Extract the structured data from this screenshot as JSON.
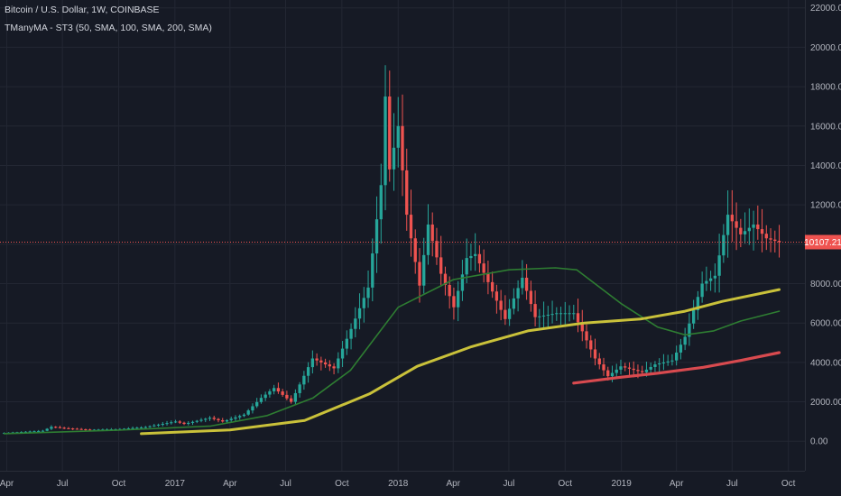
{
  "header": {
    "symbol_line": "Bitcoin / U.S. Dollar, 1W, COINBASE",
    "indicator_line": "TManyMA - ST3 (50, SMA, 100, SMA, 200, SMA)"
  },
  "chart_data": {
    "type": "candlestick",
    "ylim": [
      -1500,
      22400
    ],
    "xlim": [
      "2016-03-21",
      "2019-10-28"
    ],
    "grid": true,
    "y_ticks": [
      0,
      2000,
      4000,
      6000,
      8000,
      10000,
      12000,
      14000,
      16000,
      18000,
      20000,
      22000
    ],
    "y_tick_labels": [
      "0.00",
      "2000.00",
      "4000.00",
      "6000.00",
      "8000.00",
      "10000.00",
      "12000.00",
      "14000.00",
      "16000.00",
      "18000.00",
      "20000.00",
      "22000.00"
    ],
    "x_ticks": [
      {
        "label": "Apr",
        "date": "2016-04-01"
      },
      {
        "label": "Jul",
        "date": "2016-07-01"
      },
      {
        "label": "Oct",
        "date": "2016-10-01"
      },
      {
        "label": "2017",
        "date": "2017-01-01"
      },
      {
        "label": "Apr",
        "date": "2017-04-01"
      },
      {
        "label": "Jul",
        "date": "2017-07-01"
      },
      {
        "label": "Oct",
        "date": "2017-10-01"
      },
      {
        "label": "2018",
        "date": "2018-01-01"
      },
      {
        "label": "Apr",
        "date": "2018-04-01"
      },
      {
        "label": "Jul",
        "date": "2018-07-01"
      },
      {
        "label": "Oct",
        "date": "2018-10-01"
      },
      {
        "label": "2019",
        "date": "2019-01-01"
      },
      {
        "label": "Apr",
        "date": "2019-04-01"
      },
      {
        "label": "Jul",
        "date": "2019-07-01"
      },
      {
        "label": "Oct",
        "date": "2019-10-01"
      }
    ],
    "current_price": {
      "value": 10107.21,
      "label": "10107.21",
      "color": "#ef5350"
    },
    "colors": {
      "up": "#26a69a",
      "down": "#ef5350",
      "ma50": "#2e7d32",
      "ma100": "#c9c13a",
      "ma200": "#d84a4f"
    },
    "candle_anchors": {
      "description_note": "",
      "points": [
        [
          "2016-03-28",
          420
        ],
        [
          "2016-05-30",
          530
        ],
        [
          "2016-06-13",
          730
        ],
        [
          "2016-07-04",
          660
        ],
        [
          "2016-08-15",
          580
        ],
        [
          "2016-10-03",
          615
        ],
        [
          "2016-11-14",
          720
        ],
        [
          "2016-12-26",
          960
        ],
        [
          "2017-01-02",
          1000
        ],
        [
          "2017-01-16",
          880
        ],
        [
          "2017-02-27",
          1190
        ],
        [
          "2017-03-20",
          1000
        ],
        [
          "2017-04-24",
          1350
        ],
        [
          "2017-05-22",
          2200
        ],
        [
          "2017-06-12",
          2700
        ],
        [
          "2017-07-10",
          2000
        ],
        [
          "2017-08-14",
          4200
        ],
        [
          "2017-09-18",
          3700
        ],
        [
          "2017-10-16",
          5700
        ],
        [
          "2017-11-13",
          7800
        ],
        [
          "2017-12-04",
          13000
        ],
        [
          "2017-12-11",
          17500
        ],
        [
          "2017-12-18",
          13800
        ],
        [
          "2018-01-01",
          16000
        ],
        [
          "2018-01-15",
          11500
        ],
        [
          "2018-02-05",
          7900
        ],
        [
          "2018-02-19",
          11000
        ],
        [
          "2018-03-12",
          8500
        ],
        [
          "2018-04-02",
          6800
        ],
        [
          "2018-04-23",
          9300
        ],
        [
          "2018-05-07",
          9500
        ],
        [
          "2018-06-04",
          7600
        ],
        [
          "2018-06-25",
          6200
        ],
        [
          "2018-07-23",
          8300
        ],
        [
          "2018-08-13",
          6300
        ],
        [
          "2018-09-17",
          6500
        ],
        [
          "2018-10-15",
          6500
        ],
        [
          "2018-11-19",
          4200
        ],
        [
          "2018-12-10",
          3300
        ],
        [
          "2018-12-31",
          3800
        ],
        [
          "2019-02-04",
          3500
        ],
        [
          "2019-02-25",
          3900
        ],
        [
          "2019-03-25",
          4100
        ],
        [
          "2019-04-15",
          5300
        ],
        [
          "2019-05-13",
          8000
        ],
        [
          "2019-06-03",
          8400
        ],
        [
          "2019-06-24",
          11500
        ],
        [
          "2019-07-15",
          10500
        ],
        [
          "2019-08-05",
          11000
        ],
        [
          "2019-08-26",
          10300
        ],
        [
          "2019-09-16",
          10107
        ]
      ]
    },
    "series": [
      {
        "type": "line",
        "points": [
          [
            "2016-03-28",
            380
          ],
          [
            "2016-10-01",
            560
          ],
          [
            "2017-03-01",
            770
          ],
          [
            "2017-06-01",
            1300
          ],
          [
            "2017-08-15",
            2200
          ],
          [
            "2017-10-15",
            3600
          ],
          [
            "2018-01-01",
            6800
          ],
          [
            "2018-04-01",
            8200
          ],
          [
            "2018-07-01",
            8700
          ],
          [
            "2018-09-15",
            8800
          ],
          [
            "2018-10-20",
            8700
          ],
          [
            "2018-12-31",
            7000
          ],
          [
            "2019-03-01",
            5800
          ],
          [
            "2019-04-15",
            5400
          ],
          [
            "2019-06-01",
            5600
          ],
          [
            "2019-07-15",
            6100
          ],
          [
            "2019-09-16",
            6600
          ]
        ]
      },
      {
        "type": "line",
        "points": [
          [
            "2016-11-07",
            380
          ],
          [
            "2017-04-01",
            570
          ],
          [
            "2017-08-01",
            1050
          ],
          [
            "2017-11-15",
            2400
          ],
          [
            "2018-02-01",
            3800
          ],
          [
            "2018-05-01",
            4800
          ],
          [
            "2018-08-01",
            5600
          ],
          [
            "2018-11-01",
            6000
          ],
          [
            "2019-02-01",
            6200
          ],
          [
            "2019-04-15",
            6600
          ],
          [
            "2019-06-15",
            7100
          ],
          [
            "2019-09-16",
            7700
          ]
        ]
      },
      {
        "type": "line",
        "points": [
          [
            "2018-10-15",
            2950
          ],
          [
            "2018-12-31",
            3250
          ],
          [
            "2019-03-01",
            3450
          ],
          [
            "2019-05-15",
            3750
          ],
          [
            "2019-07-15",
            4100
          ],
          [
            "2019-09-16",
            4500
          ]
        ]
      }
    ]
  }
}
